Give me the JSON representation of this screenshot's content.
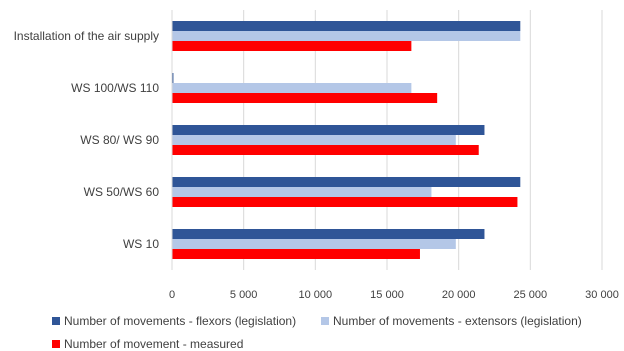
{
  "chart_data": {
    "type": "bar",
    "orientation": "horizontal",
    "categories": [
      "Installation of the air supply",
      "WS 100/WS 110",
      "WS 80/ WS 90",
      "WS 50/WS 60",
      "WS 10"
    ],
    "series": [
      {
        "name": "Number of movements - flexors (legislation)",
        "color": "#2f5597",
        "values": [
          24300,
          100,
          21800,
          24300,
          21800
        ]
      },
      {
        "name": "Number of movements - extensors (legislation)",
        "color": "#b4c7e7",
        "values": [
          24300,
          16700,
          19800,
          18100,
          19800
        ]
      },
      {
        "name": "Number of movement - measured",
        "color": "#ff0000",
        "values": [
          16700,
          18500,
          21400,
          24100,
          17300
        ]
      }
    ],
    "xticks": [
      "0",
      "5 000",
      "10 000",
      "15 000",
      "20 000",
      "25 000",
      "30 000"
    ],
    "xlim": [
      0,
      30000
    ],
    "grid": "vertical",
    "legend_position": "bottom",
    "title": "",
    "xlabel": "",
    "ylabel": ""
  }
}
